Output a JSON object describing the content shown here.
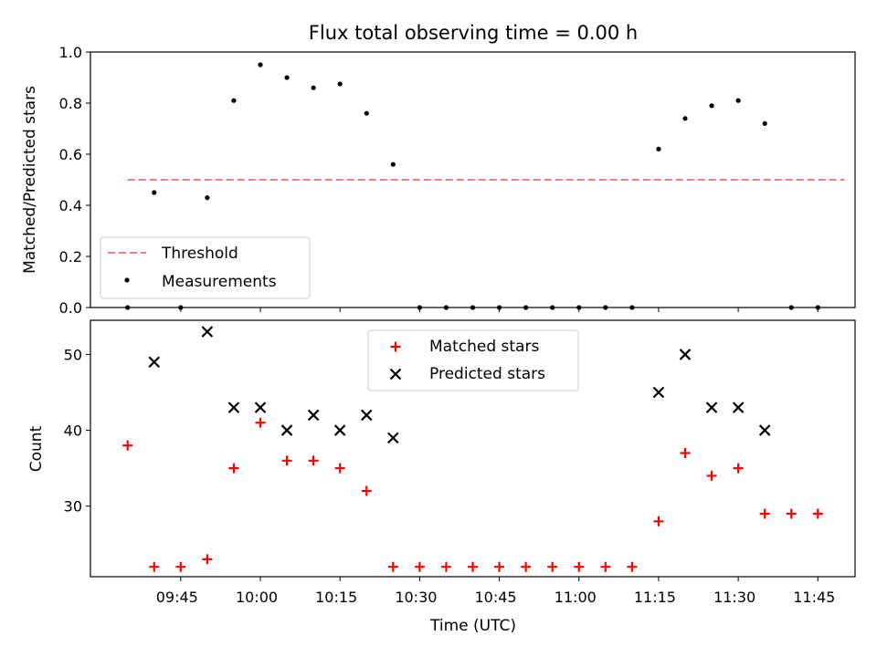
{
  "chart_data": [
    {
      "type": "scatter",
      "title": "Flux total observing time = 0.00 h",
      "xlabel": "",
      "ylabel": "Matched/Predicted stars",
      "ylim": [
        0,
        1
      ],
      "yticks": [
        "0.0",
        "0.2",
        "0.4",
        "0.6",
        "0.8",
        "1.0"
      ],
      "threshold": {
        "name": "Threshold",
        "value": 0.5,
        "x_start": "09:35",
        "x_end": "11:50",
        "color": "#f08080"
      },
      "series": [
        {
          "name": "Measurements",
          "color": "#000000",
          "x": [
            "09:35",
            "09:40",
            "09:45",
            "09:50",
            "09:55",
            "10:00",
            "10:05",
            "10:10",
            "10:15",
            "10:20",
            "10:25",
            "10:30",
            "10:35",
            "10:40",
            "10:45",
            "10:50",
            "10:55",
            "11:00",
            "11:05",
            "11:10",
            "11:15",
            "11:20",
            "11:25",
            "11:30",
            "11:35",
            "11:40",
            "11:45"
          ],
          "values": [
            0.0,
            0.45,
            0.0,
            0.43,
            0.81,
            0.95,
            0.9,
            0.86,
            0.875,
            0.76,
            0.56,
            0.0,
            0.0,
            0.0,
            0.0,
            0.0,
            0.0,
            0.0,
            0.0,
            0.0,
            0.62,
            0.74,
            0.79,
            0.81,
            0.72,
            0.0,
            0.0
          ]
        }
      ],
      "legend": "lower-left"
    },
    {
      "type": "scatter",
      "title": "",
      "xlabel": "Time (UTC)",
      "ylabel": "Count",
      "ylim": [
        20.7,
        54.5
      ],
      "yticks": [
        "30",
        "40",
        "50"
      ],
      "xticks": [
        "09:45",
        "10:00",
        "10:15",
        "10:30",
        "10:45",
        "11:00",
        "11:15",
        "11:30",
        "11:45"
      ],
      "xlim": [
        "09:28",
        "11:52"
      ],
      "series": [
        {
          "name": "Matched stars",
          "color": "#ff0000",
          "marker": "plus",
          "x": [
            "09:35",
            "09:40",
            "09:45",
            "09:50",
            "09:55",
            "10:00",
            "10:05",
            "10:10",
            "10:15",
            "10:20",
            "10:25",
            "10:30",
            "10:35",
            "10:40",
            "10:45",
            "10:50",
            "10:55",
            "11:00",
            "11:05",
            "11:10",
            "11:15",
            "11:20",
            "11:25",
            "11:30",
            "11:35",
            "11:40",
            "11:45"
          ],
          "values": [
            38,
            22,
            22,
            23,
            35,
            41,
            36,
            36,
            35,
            32,
            22,
            22,
            22,
            22,
            22,
            22,
            22,
            22,
            22,
            22,
            28,
            37,
            34,
            35,
            29,
            29,
            29
          ]
        },
        {
          "name": "Predicted stars",
          "color": "#000000",
          "marker": "x",
          "x": [
            "09:40",
            "09:50",
            "09:55",
            "10:00",
            "10:05",
            "10:10",
            "10:15",
            "10:20",
            "10:25",
            "11:15",
            "11:20",
            "11:25",
            "11:30",
            "11:35"
          ],
          "values": [
            49,
            53,
            43,
            43,
            40,
            42,
            40,
            42,
            39,
            45,
            50,
            43,
            43,
            40
          ]
        }
      ],
      "legend": "upper-center"
    }
  ]
}
